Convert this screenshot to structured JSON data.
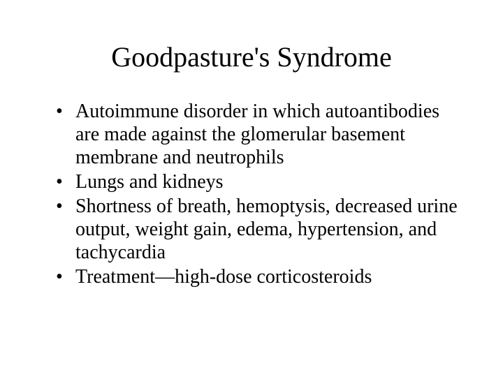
{
  "slide": {
    "title": "Goodpasture's Syndrome",
    "bullets": [
      "Autoimmune disorder in which autoantibodies are made against the glomerular basement membrane and neutrophils",
      "Lungs and kidneys",
      "Shortness of breath, hemoptysis, decreased urine output, weight gain, edema, hypertension, and tachycardia",
      "Treatment—high-dose corticosteroids"
    ],
    "background_color": "#ffffff",
    "text_color": "#000000",
    "title_fontsize": 40,
    "body_fontsize": 28,
    "font_family": "Times New Roman"
  }
}
